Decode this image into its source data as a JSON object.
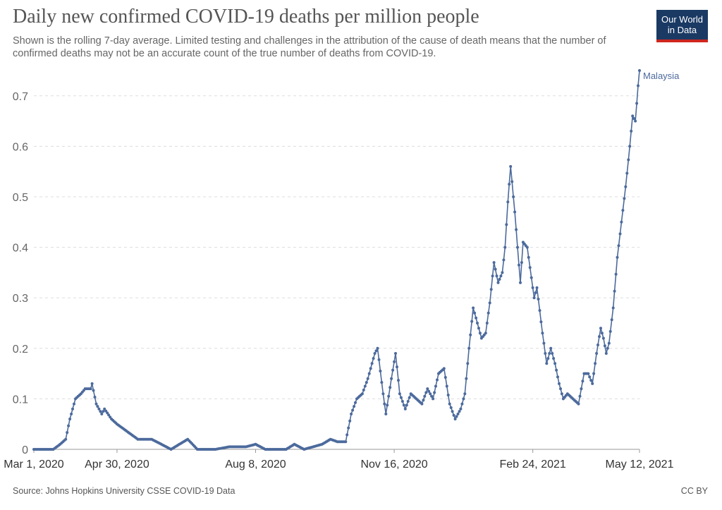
{
  "title": "Daily new confirmed COVID-19 deaths per million people",
  "subtitle": "Shown is the rolling 7-day average. Limited testing and challenges in the attribution of the cause of death means that the number of confirmed deaths may not be an accurate count of the true number of deaths from COVID-19.",
  "logo": {
    "line1": "Our World",
    "line2": "in Data"
  },
  "source": "Source: Johns Hopkins University CSSE COVID-19 Data",
  "license": "CC BY",
  "colors": {
    "series": "#4c6a9c",
    "grid": "#dddddd",
    "logo_bg": "#1a3a64",
    "logo_accent": "#ce261e"
  },
  "chart_data": {
    "type": "line",
    "title": "Daily new confirmed COVID-19 deaths per million people",
    "xlabel": "",
    "ylabel": "",
    "ylim": [
      0,
      0.75
    ],
    "y_ticks": [
      "0",
      "0.1",
      "0.2",
      "0.3",
      "0.4",
      "0.5",
      "0.6",
      "0.7"
    ],
    "x_ticks": [
      "Mar 1, 2020",
      "Apr 30, 2020",
      "Aug 8, 2020",
      "Nov 16, 2020",
      "Feb 24, 2021",
      "May 12, 2021"
    ],
    "grid": "horizontal dashed",
    "series": [
      {
        "name": "Malaysia",
        "color": "#4c6a9c",
        "points": [
          [
            "2020-03-01",
            0
          ],
          [
            "2020-03-15",
            0
          ],
          [
            "2020-03-20",
            0.01
          ],
          [
            "2020-03-24",
            0.02
          ],
          [
            "2020-03-27",
            0.06
          ],
          [
            "2020-03-31",
            0.1
          ],
          [
            "2020-04-04",
            0.11
          ],
          [
            "2020-04-07",
            0.12
          ],
          [
            "2020-04-11",
            0.12
          ],
          [
            "2020-04-12",
            0.13
          ],
          [
            "2020-04-15",
            0.09
          ],
          [
            "2020-04-19",
            0.07
          ],
          [
            "2020-04-21",
            0.08
          ],
          [
            "2020-04-26",
            0.06
          ],
          [
            "2020-04-30",
            0.05
          ],
          [
            "2020-05-05",
            0.04
          ],
          [
            "2020-05-10",
            0.03
          ],
          [
            "2020-05-15",
            0.02
          ],
          [
            "2020-05-20",
            0.02
          ],
          [
            "2020-05-25",
            0.02
          ],
          [
            "2020-06-01",
            0.01
          ],
          [
            "2020-06-08",
            0
          ],
          [
            "2020-06-14",
            0.01
          ],
          [
            "2020-06-20",
            0.02
          ],
          [
            "2020-06-27",
            0
          ],
          [
            "2020-07-10",
            0
          ],
          [
            "2020-07-20",
            0.005
          ],
          [
            "2020-08-01",
            0.005
          ],
          [
            "2020-08-08",
            0.01
          ],
          [
            "2020-08-15",
            0
          ],
          [
            "2020-08-30",
            0
          ],
          [
            "2020-09-05",
            0.01
          ],
          [
            "2020-09-12",
            0
          ],
          [
            "2020-09-25",
            0.01
          ],
          [
            "2020-10-01",
            0.02
          ],
          [
            "2020-10-06",
            0.015
          ],
          [
            "2020-10-12",
            0.015
          ],
          [
            "2020-10-16",
            0.07
          ],
          [
            "2020-10-20",
            0.1
          ],
          [
            "2020-10-24",
            0.11
          ],
          [
            "2020-10-28",
            0.14
          ],
          [
            "2020-11-02",
            0.19
          ],
          [
            "2020-11-04",
            0.2
          ],
          [
            "2020-11-08",
            0.11
          ],
          [
            "2020-11-10",
            0.07
          ],
          [
            "2020-11-14",
            0.14
          ],
          [
            "2020-11-17",
            0.19
          ],
          [
            "2020-11-20",
            0.11
          ],
          [
            "2020-11-24",
            0.08
          ],
          [
            "2020-11-28",
            0.11
          ],
          [
            "2020-12-02",
            0.1
          ],
          [
            "2020-12-06",
            0.09
          ],
          [
            "2020-12-10",
            0.12
          ],
          [
            "2020-12-14",
            0.1
          ],
          [
            "2020-12-18",
            0.15
          ],
          [
            "2020-12-22",
            0.16
          ],
          [
            "2020-12-26",
            0.09
          ],
          [
            "2020-12-30",
            0.06
          ],
          [
            "2021-01-03",
            0.08
          ],
          [
            "2021-01-06",
            0.11
          ],
          [
            "2021-01-09",
            0.2
          ],
          [
            "2021-01-12",
            0.28
          ],
          [
            "2021-01-15",
            0.25
          ],
          [
            "2021-01-18",
            0.22
          ],
          [
            "2021-01-21",
            0.23
          ],
          [
            "2021-01-24",
            0.29
          ],
          [
            "2021-01-27",
            0.37
          ],
          [
            "2021-01-30",
            0.33
          ],
          [
            "2021-02-02",
            0.35
          ],
          [
            "2021-02-04",
            0.4
          ],
          [
            "2021-02-06",
            0.49
          ],
          [
            "2021-02-08",
            0.56
          ],
          [
            "2021-02-11",
            0.47
          ],
          [
            "2021-02-13",
            0.4
          ],
          [
            "2021-02-15",
            0.33
          ],
          [
            "2021-02-17",
            0.41
          ],
          [
            "2021-02-20",
            0.4
          ],
          [
            "2021-02-22",
            0.36
          ],
          [
            "2021-02-25",
            0.3
          ],
          [
            "2021-02-27",
            0.32
          ],
          [
            "2021-03-03",
            0.23
          ],
          [
            "2021-03-06",
            0.17
          ],
          [
            "2021-03-09",
            0.2
          ],
          [
            "2021-03-12",
            0.17
          ],
          [
            "2021-03-15",
            0.13
          ],
          [
            "2021-03-18",
            0.1
          ],
          [
            "2021-03-21",
            0.11
          ],
          [
            "2021-03-25",
            0.1
          ],
          [
            "2021-03-29",
            0.09
          ],
          [
            "2021-04-02",
            0.15
          ],
          [
            "2021-04-05",
            0.15
          ],
          [
            "2021-04-08",
            0.13
          ],
          [
            "2021-04-11",
            0.19
          ],
          [
            "2021-04-14",
            0.24
          ],
          [
            "2021-04-16",
            0.22
          ],
          [
            "2021-04-18",
            0.19
          ],
          [
            "2021-04-20",
            0.21
          ],
          [
            "2021-04-23",
            0.28
          ],
          [
            "2021-04-26",
            0.38
          ],
          [
            "2021-04-29",
            0.45
          ],
          [
            "2021-05-02",
            0.52
          ],
          [
            "2021-05-05",
            0.6
          ],
          [
            "2021-05-07",
            0.66
          ],
          [
            "2021-05-09",
            0.65
          ],
          [
            "2021-05-11",
            0.72
          ],
          [
            "2021-05-12",
            0.75
          ]
        ]
      }
    ]
  }
}
